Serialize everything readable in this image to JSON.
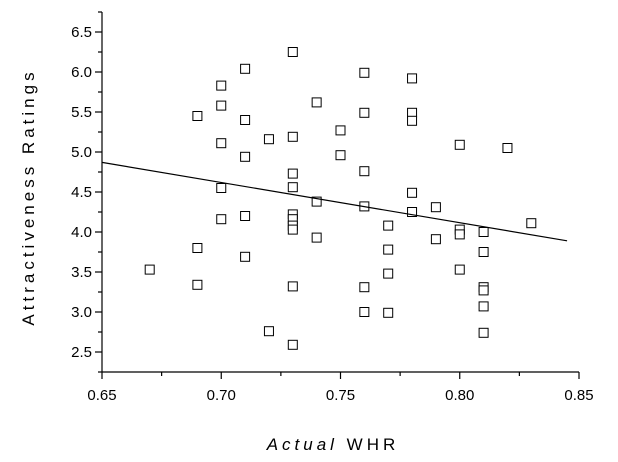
{
  "chart_data": {
    "type": "scatter",
    "title": "",
    "xlabel_italic": "Actual",
    "xlabel_rest": " WHR",
    "ylabel": "Attractiveness Ratings",
    "xlim": [
      0.65,
      0.85
    ],
    "ylim": [
      2.25,
      6.75
    ],
    "x_ticks": [
      0.65,
      0.7,
      0.75,
      0.8,
      0.85
    ],
    "x_tick_labels": [
      "0.65",
      "0.70",
      "0.75",
      "0.80",
      "0.85"
    ],
    "x_minor_ticks": [
      0.675,
      0.725,
      0.775,
      0.825
    ],
    "y_ticks": [
      2.5,
      3.0,
      3.5,
      4.0,
      4.5,
      5.0,
      5.5,
      6.0,
      6.5
    ],
    "y_tick_labels": [
      "2.5",
      "3.0",
      "3.5",
      "4.0",
      "4.5",
      "5.0",
      "5.5",
      "6.0",
      "6.5"
    ],
    "y_minor_ticks": [
      2.25,
      2.75,
      3.25,
      3.75,
      4.25,
      4.75,
      5.25,
      5.75,
      6.25,
      6.75
    ],
    "grid": false,
    "series": [
      {
        "marker": "open-square",
        "points": [
          [
            0.67,
            3.53
          ],
          [
            0.69,
            5.45
          ],
          [
            0.69,
            3.8
          ],
          [
            0.69,
            3.34
          ],
          [
            0.7,
            5.83
          ],
          [
            0.7,
            5.58
          ],
          [
            0.7,
            5.11
          ],
          [
            0.7,
            4.55
          ],
          [
            0.7,
            4.16
          ],
          [
            0.71,
            6.04
          ],
          [
            0.71,
            5.4
          ],
          [
            0.71,
            4.94
          ],
          [
            0.71,
            4.2
          ],
          [
            0.71,
            3.69
          ],
          [
            0.72,
            5.16
          ],
          [
            0.72,
            2.76
          ],
          [
            0.73,
            6.25
          ],
          [
            0.73,
            5.19
          ],
          [
            0.73,
            4.73
          ],
          [
            0.73,
            4.56
          ],
          [
            0.73,
            4.22
          ],
          [
            0.73,
            4.16
          ],
          [
            0.73,
            4.08
          ],
          [
            0.73,
            4.03
          ],
          [
            0.73,
            3.32
          ],
          [
            0.73,
            2.59
          ],
          [
            0.74,
            5.62
          ],
          [
            0.74,
            4.38
          ],
          [
            0.74,
            3.93
          ],
          [
            0.75,
            5.27
          ],
          [
            0.75,
            4.96
          ],
          [
            0.76,
            5.99
          ],
          [
            0.76,
            5.49
          ],
          [
            0.76,
            4.76
          ],
          [
            0.76,
            4.32
          ],
          [
            0.76,
            3.31
          ],
          [
            0.76,
            3.0
          ],
          [
            0.77,
            4.08
          ],
          [
            0.77,
            3.78
          ],
          [
            0.77,
            3.48
          ],
          [
            0.77,
            2.99
          ],
          [
            0.78,
            5.92
          ],
          [
            0.78,
            5.49
          ],
          [
            0.78,
            5.39
          ],
          [
            0.78,
            4.49
          ],
          [
            0.78,
            4.25
          ],
          [
            0.79,
            4.31
          ],
          [
            0.79,
            3.91
          ],
          [
            0.8,
            5.09
          ],
          [
            0.8,
            4.03
          ],
          [
            0.8,
            3.97
          ],
          [
            0.8,
            3.53
          ],
          [
            0.81,
            4.0
          ],
          [
            0.81,
            3.75
          ],
          [
            0.81,
            3.31
          ],
          [
            0.81,
            3.27
          ],
          [
            0.81,
            3.07
          ],
          [
            0.81,
            2.74
          ],
          [
            0.82,
            5.05
          ],
          [
            0.83,
            4.11
          ]
        ]
      }
    ],
    "trendline": {
      "x": [
        0.65,
        0.845
      ],
      "y": [
        4.87,
        3.89
      ]
    }
  }
}
